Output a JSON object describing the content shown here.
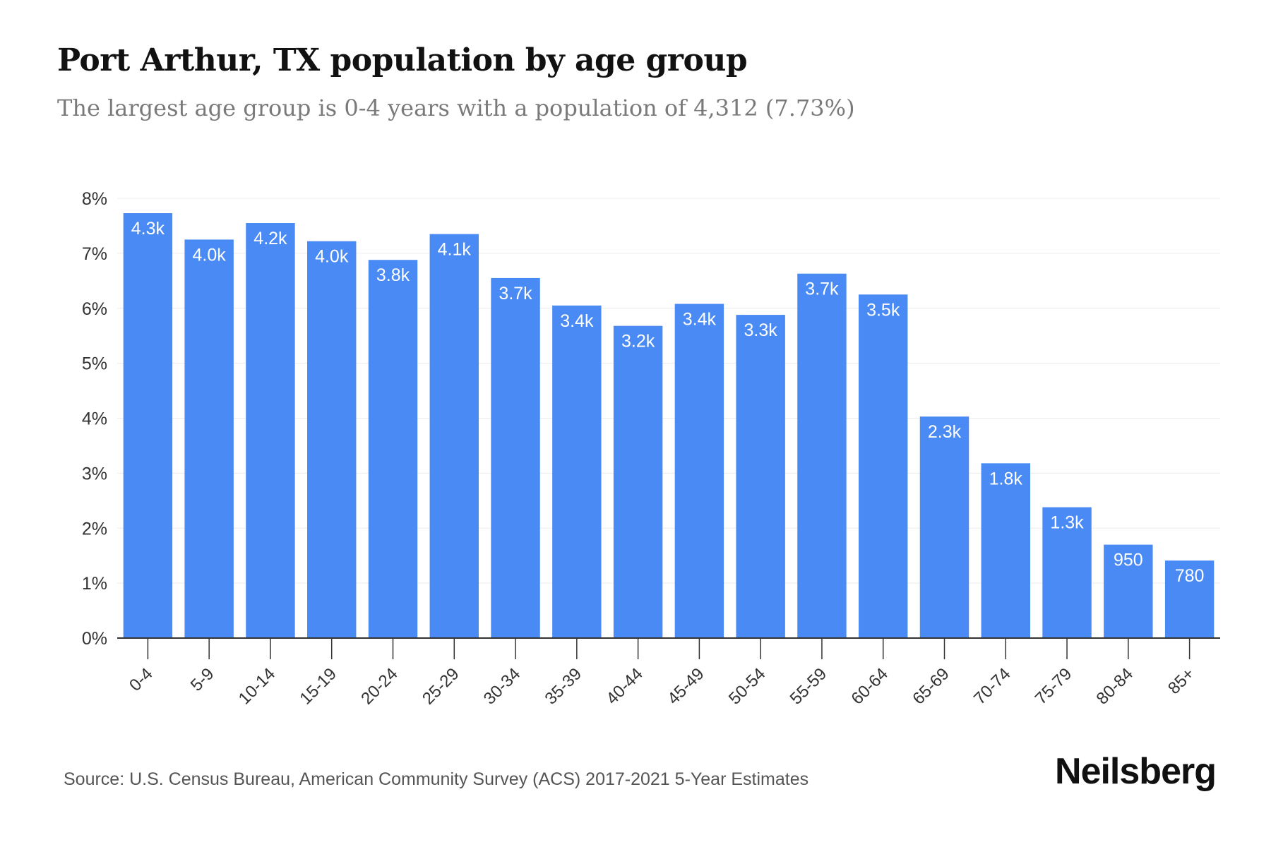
{
  "header": {
    "title": "Port Arthur, TX population by age group",
    "subtitle": "The largest age group is 0-4 years with a population of 4,312 (7.73%)"
  },
  "footer": {
    "source": "Source: U.S. Census Bureau, American Community Survey (ACS) 2017-2021 5-Year Estimates",
    "brand": "Neilsberg"
  },
  "chart_data": {
    "type": "bar",
    "categories": [
      "0-4",
      "5-9",
      "10-14",
      "15-19",
      "20-24",
      "25-29",
      "30-34",
      "35-39",
      "40-44",
      "45-49",
      "50-54",
      "55-59",
      "60-64",
      "65-69",
      "70-74",
      "75-79",
      "80-84",
      "85+"
    ],
    "values": [
      7.73,
      7.25,
      7.55,
      7.22,
      6.88,
      7.35,
      6.55,
      6.05,
      5.68,
      6.08,
      5.88,
      6.63,
      6.25,
      4.03,
      3.18,
      2.38,
      1.7,
      1.41
    ],
    "data_labels": [
      "4.3k",
      "4.0k",
      "4.2k",
      "4.0k",
      "3.8k",
      "4.1k",
      "3.7k",
      "3.4k",
      "3.2k",
      "3.4k",
      "3.3k",
      "3.7k",
      "3.5k",
      "2.3k",
      "1.8k",
      "1.3k",
      "950",
      "780"
    ],
    "y_ticks": [
      0,
      1,
      2,
      3,
      4,
      5,
      6,
      7,
      8
    ],
    "y_tick_labels": [
      "0%",
      "1%",
      "2%",
      "3%",
      "4%",
      "5%",
      "6%",
      "7%",
      "8%"
    ],
    "ylim": [
      0,
      8
    ],
    "xlabel": "",
    "ylabel": "",
    "grid": true,
    "colors": {
      "bar": "#4a8af4",
      "grid": "#ececec",
      "axis": "#333333",
      "label": "#ffffff",
      "tick_text": "#333333"
    }
  }
}
